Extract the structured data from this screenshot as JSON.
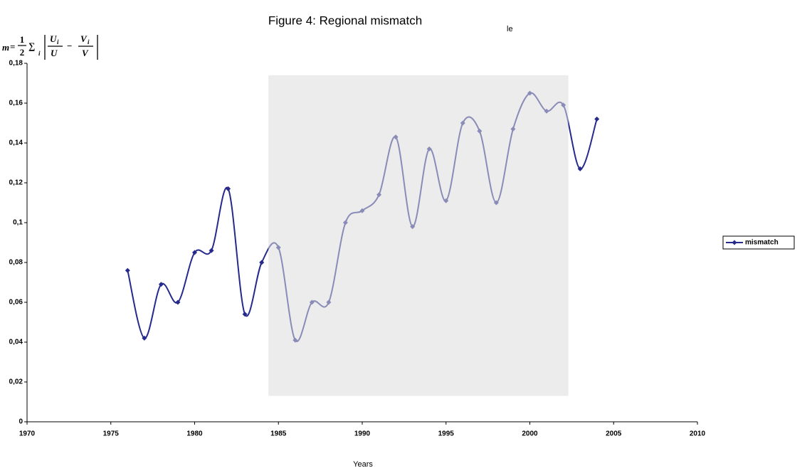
{
  "chart_data": {
    "type": "line",
    "title": "Figure 4: Regional mismatch",
    "stray_text": "le",
    "xlabel": "Years",
    "ylabel": {
      "lhs": "m",
      "eq": "=",
      "frac_num": "1",
      "frac_den": "2",
      "sum": "∑",
      "sum_index": "i",
      "a_num": "U",
      "a_num_sub": "i",
      "a_den": "U",
      "minus": "−",
      "b_num": "V",
      "b_num_sub": "i",
      "b_den": "V"
    },
    "x": [
      1976,
      1977,
      1978,
      1979,
      1980,
      1981,
      1982,
      1983,
      1984,
      1985,
      1986,
      1987,
      1988,
      1989,
      1990,
      1991,
      1992,
      1993,
      1994,
      1995,
      1996,
      1997,
      1998,
      1999,
      2000,
      2001,
      2002,
      2003,
      2004
    ],
    "series": [
      {
        "name": "mismatch",
        "color": "#262a8c",
        "values": [
          0.076,
          0.042,
          0.069,
          0.06,
          0.085,
          0.086,
          0.117,
          0.054,
          0.08,
          0.0875,
          0.041,
          0.06,
          0.06,
          0.1,
          0.106,
          0.114,
          0.143,
          0.098,
          0.137,
          0.111,
          0.15,
          0.146,
          0.11,
          0.147,
          0.165,
          0.156,
          0.159,
          0.127,
          0.152
        ]
      }
    ],
    "xlim": [
      1970,
      2010
    ],
    "xticks": [
      1970,
      1975,
      1980,
      1985,
      1990,
      1995,
      2000,
      2005,
      2010
    ],
    "ylim": [
      0,
      0.18
    ],
    "yticks": [
      {
        "value": 0,
        "label": "0"
      },
      {
        "value": 0.02,
        "label": "0,02"
      },
      {
        "value": 0.04,
        "label": "0,04"
      },
      {
        "value": 0.06,
        "label": "0,06"
      },
      {
        "value": 0.08,
        "label": "0,08"
      },
      {
        "value": 0.1,
        "label": "0,1"
      },
      {
        "value": 0.12,
        "label": "0,12"
      },
      {
        "value": 0.14,
        "label": "0,14"
      },
      {
        "value": 0.16,
        "label": "0,16"
      },
      {
        "value": 0.18,
        "label": "0,18"
      }
    ],
    "highlight": {
      "x": [
        1984.4,
        2002.3
      ],
      "y": [
        0.013,
        0.174
      ],
      "color": "#dcdcdc"
    },
    "smooth": true,
    "legend": "right"
  }
}
